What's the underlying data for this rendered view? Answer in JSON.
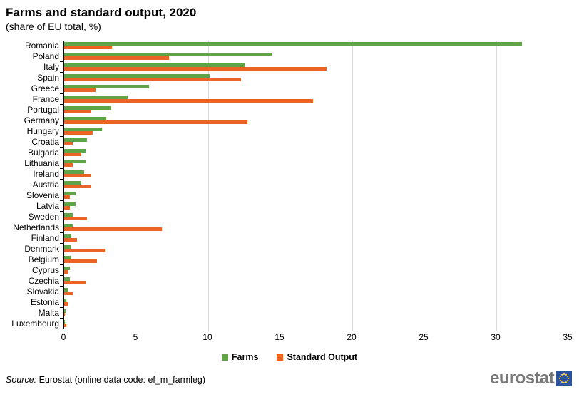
{
  "title": "Farms and standard output, 2020",
  "subtitle": "(share of EU total, %)",
  "legend": {
    "farms_label": "Farms",
    "standard_output_label": "Standard Output"
  },
  "source": {
    "prefix": "Source:",
    "text": " Eurostat (online data code: ef_m_farmleg)"
  },
  "logo": {
    "text": "eurostat"
  },
  "colors": {
    "farms": "#5FA446",
    "standard_output": "#EC6425",
    "gridline": "#D9D9D9",
    "axis": "#000000",
    "logo_text": "#787878",
    "logo_box": "#2D53A0",
    "logo_stars": "#F8D12E"
  },
  "chart_data": {
    "type": "bar",
    "orientation": "horizontal",
    "title": "Farms and standard output, 2020",
    "subtitle": "(share of EU total, %)",
    "xlabel": "share of EU total, %",
    "ylabel": "",
    "xlim": [
      0,
      35
    ],
    "xticks": [
      0,
      5,
      10,
      15,
      20,
      25,
      30,
      35
    ],
    "gridlines": [
      10,
      20,
      30
    ],
    "grid": "vertical-light",
    "legend_position": "bottom",
    "categories": [
      "Romania",
      "Poland",
      "Italy",
      "Spain",
      "Greece",
      "France",
      "Portugal",
      "Germany",
      "Hungary",
      "Croatia",
      "Bulgaria",
      "Lithuania",
      "Ireland",
      "Austria",
      "Slovenia",
      "Latvia",
      "Sweden",
      "Netherlands",
      "Finland",
      "Denmark",
      "Belgium",
      "Cyprus",
      "Czechia",
      "Slovakia",
      "Estonia",
      "Malta",
      "Luxembourg"
    ],
    "series": [
      {
        "name": "Farms",
        "values": [
          31.8,
          14.4,
          12.5,
          10.1,
          5.9,
          4.4,
          3.2,
          2.9,
          2.6,
          1.6,
          1.5,
          1.5,
          1.4,
          1.2,
          0.8,
          0.8,
          0.6,
          0.6,
          0.5,
          0.45,
          0.45,
          0.4,
          0.4,
          0.25,
          0.15,
          0.1,
          0.05
        ]
      },
      {
        "name": "Standard Output",
        "values": [
          3.3,
          7.3,
          18.2,
          12.3,
          2.2,
          17.3,
          1.9,
          12.7,
          2.0,
          0.6,
          1.2,
          0.6,
          1.9,
          1.9,
          0.4,
          0.4,
          1.6,
          6.8,
          0.9,
          2.8,
          2.3,
          0.3,
          1.5,
          0.6,
          0.25,
          0.05,
          0.15
        ]
      }
    ]
  }
}
